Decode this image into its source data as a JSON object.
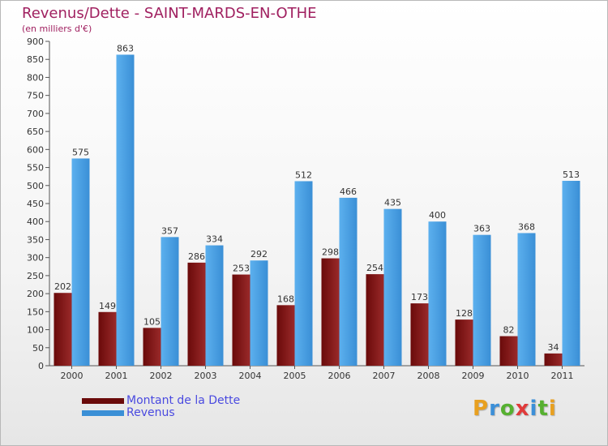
{
  "title": "Revenus/Dette - SAINT-MARDS-EN-OTHE",
  "subtitle": "(en milliers d'€)",
  "colors": {
    "dette": "#6a0a0a",
    "dette_light": "#9a2a2a",
    "revenus": "#3a8fd6",
    "revenus_light": "#5cb0ee",
    "title": "#a02060",
    "legend_text": "#4a4ae0"
  },
  "legend": {
    "dette_label": "Montant de la Dette",
    "revenus_label": "Revenus"
  },
  "logo": {
    "letters": [
      {
        "ch": "P",
        "color": "#e8a020"
      },
      {
        "ch": "r",
        "color": "#3b8fd8"
      },
      {
        "ch": "o",
        "color": "#56b030"
      },
      {
        "ch": "x",
        "color": "#e03a3a"
      },
      {
        "ch": "i",
        "color": "#3b8fd8"
      },
      {
        "ch": "t",
        "color": "#56b030"
      },
      {
        "ch": "i",
        "color": "#e8a020"
      }
    ]
  },
  "chart_data": {
    "type": "bar",
    "categories": [
      "2000",
      "2001",
      "2002",
      "2003",
      "2004",
      "2005",
      "2006",
      "2007",
      "2008",
      "2009",
      "2010",
      "2011"
    ],
    "series": [
      {
        "name": "Montant de la Dette",
        "values": [
          202,
          149,
          105,
          286,
          253,
          168,
          298,
          254,
          173,
          128,
          82,
          34
        ]
      },
      {
        "name": "Revenus",
        "values": [
          575,
          863,
          357,
          334,
          292,
          512,
          466,
          435,
          400,
          363,
          368,
          513
        ]
      }
    ],
    "ylim": [
      0,
      900
    ],
    "yticks": [
      0,
      50,
      100,
      150,
      200,
      250,
      300,
      350,
      400,
      450,
      500,
      550,
      600,
      650,
      700,
      750,
      800,
      850,
      900
    ],
    "grid": false,
    "legend_position": "bottom-left"
  }
}
